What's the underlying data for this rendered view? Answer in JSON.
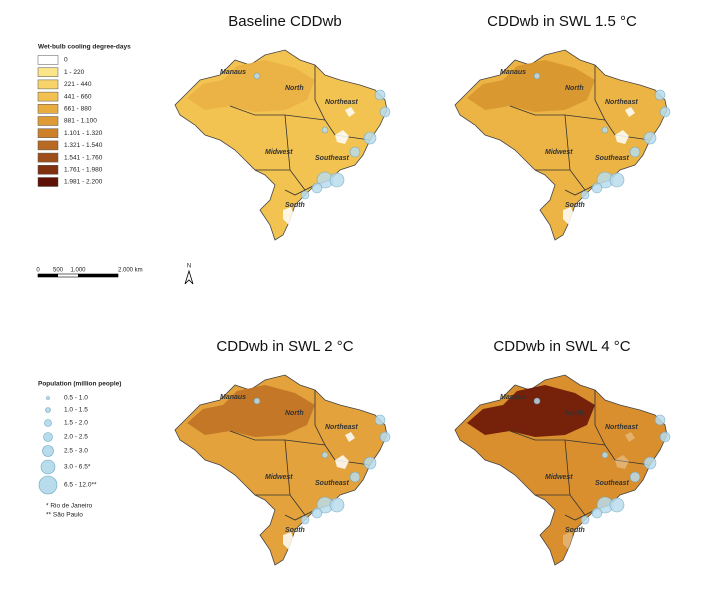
{
  "panels": [
    {
      "title": "Baseline CDDwb",
      "labels": [
        "Manaus",
        "North",
        "Northeast",
        "Midwest",
        "Southeast",
        "South"
      ]
    },
    {
      "title": "CDDwb in SWL 1.5 °C",
      "labels": [
        "Manaus",
        "North",
        "Northeast",
        "Midwest",
        "Southeast",
        "South"
      ]
    },
    {
      "title": "CDDwb in SWL 2 °C",
      "labels": [
        "Manaus",
        "North",
        "Northeast",
        "Midwest",
        "Southeast",
        "South"
      ]
    },
    {
      "title": "CDDwb in SWL 4 °C",
      "labels": [
        "Manaus",
        "North",
        "Northeast",
        "Midwest",
        "Southeast",
        "South"
      ]
    }
  ],
  "legend_cdd": {
    "title": "Wet-bulb cooling degree-days",
    "classes": [
      {
        "label": "0",
        "color": "#ffffff"
      },
      {
        "label": "1 - 220",
        "color": "#fbe58a"
      },
      {
        "label": "221 - 440",
        "color": "#f7d36a"
      },
      {
        "label": "441 - 660",
        "color": "#f2c151"
      },
      {
        "label": "661 - 880",
        "color": "#e9ad3f"
      },
      {
        "label": "881 - 1.100",
        "color": "#de9a34"
      },
      {
        "label": "1.101 - 1.320",
        "color": "#cd822a"
      },
      {
        "label": "1.321 - 1.540",
        "color": "#b86a22"
      },
      {
        "label": "1.541 - 1.760",
        "color": "#9e4f19"
      },
      {
        "label": "1.761 - 1.980",
        "color": "#7f300f"
      },
      {
        "label": "1.981 - 2.200",
        "color": "#5e1206"
      }
    ]
  },
  "scale_bar": {
    "labels": [
      "0",
      "500",
      "1.000",
      "2.000 km"
    ]
  },
  "north_arrow": "N",
  "legend_population": {
    "title": "Population (million people)",
    "classes": [
      "0.5 - 1.0",
      "1.0 - 1.5",
      "1.5 - 2.0",
      "2.0 - 2.5",
      "2.5 - 3.0",
      "3.0 - 6.5*",
      "6.5 - 12.0**"
    ],
    "notes": [
      "* Rio de Janeiro",
      "** São Paulo"
    ]
  }
}
